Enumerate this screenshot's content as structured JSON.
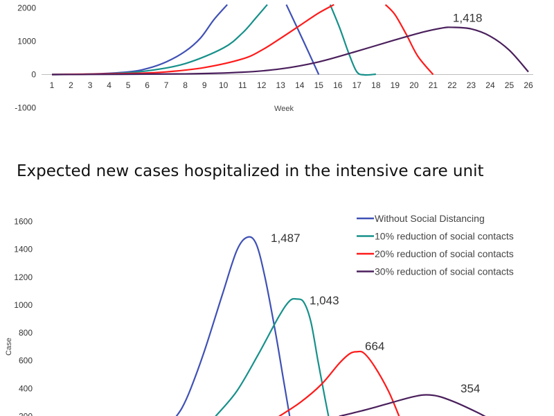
{
  "heading": "Expected new cases hospitalized in the intensive care unit",
  "chart_data": [
    {
      "type": "line",
      "title": "",
      "xlabel": "Week",
      "ylabel": "",
      "x": [
        1,
        2,
        3,
        4,
        5,
        6,
        7,
        8,
        9,
        10,
        11,
        12,
        13,
        14,
        15,
        16,
        17,
        18,
        19,
        20,
        21,
        22,
        23,
        24,
        25,
        26
      ],
      "x_ticks": [
        "1",
        "2",
        "3",
        "4",
        "5",
        "6",
        "7",
        "8",
        "9",
        "10",
        "11",
        "12",
        "13",
        "14",
        "15",
        "16",
        "17",
        "18",
        "19",
        "20",
        "21",
        "22",
        "23",
        "24",
        "25",
        "26"
      ],
      "y_ticks": [
        "2000",
        "1000",
        "0",
        "-1000"
      ],
      "y_tick_values": [
        2000,
        1000,
        0,
        -1000
      ],
      "ylim": [
        -1000,
        2000
      ],
      "grid": false,
      "series": [
        {
          "color": "#3f51b5",
          "points": [
            [
              1,
              0
            ],
            [
              3,
              15
            ],
            [
              5,
              80
            ],
            [
              6,
              180
            ],
            [
              7,
              380
            ],
            [
              8,
              700
            ],
            [
              8.8,
              1100
            ],
            [
              9.5,
              1650
            ],
            [
              10.2,
              2100
            ]
          ],
          "points_tail": [
            [
              13.3,
              2100
            ],
            [
              14.2,
              1000
            ],
            [
              15,
              0
            ]
          ]
        },
        {
          "color": "#16908a",
          "points": [
            [
              1,
              0
            ],
            [
              4,
              25
            ],
            [
              6,
              110
            ],
            [
              8,
              330
            ],
            [
              10,
              800
            ],
            [
              11,
              1250
            ],
            [
              11.7,
              1700
            ],
            [
              12.3,
              2100
            ]
          ],
          "points_tail": [
            [
              15.6,
              2100
            ],
            [
              16.1,
              1400
            ],
            [
              16.6,
              600
            ],
            [
              17,
              80
            ],
            [
              17.4,
              -10
            ],
            [
              18,
              10
            ]
          ]
        },
        {
          "color": "#ff1a1a",
          "points": [
            [
              1,
              0
            ],
            [
              5,
              30
            ],
            [
              7,
              80
            ],
            [
              9,
              210
            ],
            [
              11,
              470
            ],
            [
              12,
              730
            ],
            [
              13,
              1090
            ],
            [
              14,
              1470
            ],
            [
              15,
              1850
            ],
            [
              15.8,
              2100
            ]
          ],
          "points_tail": [
            [
              18.5,
              2100
            ],
            [
              19,
              1800
            ],
            [
              19.6,
              1200
            ],
            [
              20.2,
              550
            ],
            [
              21,
              0
            ]
          ]
        },
        {
          "color": "#4a1f5c",
          "points": [
            [
              1,
              0
            ],
            [
              8,
              20
            ],
            [
              11,
              70
            ],
            [
              13,
              170
            ],
            [
              15,
              380
            ],
            [
              17,
              700
            ],
            [
              19,
              1040
            ],
            [
              20.5,
              1280
            ],
            [
              21.5,
              1400
            ],
            [
              22,
              1418
            ],
            [
              23,
              1370
            ],
            [
              24,
              1150
            ],
            [
              25,
              730
            ],
            [
              26,
              80
            ]
          ],
          "peak_label": "1,418",
          "peak_at": [
            22,
            1418
          ]
        }
      ]
    },
    {
      "type": "line",
      "title": "",
      "xlabel": "",
      "ylabel": "Case",
      "y_ticks": [
        "1600",
        "1400",
        "1200",
        "1000",
        "800",
        "600",
        "400",
        "200"
      ],
      "y_tick_values": [
        1600,
        1400,
        1200,
        1000,
        800,
        600,
        400,
        200
      ],
      "ylim": [
        200,
        1600
      ],
      "grid": false,
      "legend_position": "top-right",
      "series": [
        {
          "name": "Without Social Distancing",
          "color": "#3f51b5",
          "peak_label": "1,487",
          "peak": 1487,
          "points": [
            [
              0.0,
              170
            ],
            [
              0.025,
              260
            ],
            [
              0.05,
              400
            ],
            [
              0.09,
              680
            ],
            [
              0.14,
              1080
            ],
            [
              0.18,
              1390
            ],
            [
              0.21,
              1487
            ],
            [
              0.235,
              1440
            ],
            [
              0.26,
              1200
            ],
            [
              0.29,
              800
            ],
            [
              0.31,
              500
            ],
            [
              0.33,
              200
            ]
          ]
        },
        {
          "name": "10% reduction of social contacts",
          "color": "#16908a",
          "peak_label": "1,043",
          "peak": 1043,
          "points": [
            [
              0.12,
              200
            ],
            [
              0.18,
              380
            ],
            [
              0.24,
              640
            ],
            [
              0.3,
              920
            ],
            [
              0.33,
              1030
            ],
            [
              0.35,
              1043
            ],
            [
              0.37,
              1020
            ],
            [
              0.39,
              880
            ],
            [
              0.41,
              600
            ],
            [
              0.43,
              330
            ],
            [
              0.44,
              200
            ]
          ]
        },
        {
          "name": "20% reduction of social contacts",
          "color": "#ff1a1a",
          "peak_label": "664",
          "peak": 664,
          "points": [
            [
              0.3,
              200
            ],
            [
              0.36,
              300
            ],
            [
              0.42,
              430
            ],
            [
              0.47,
              580
            ],
            [
              0.5,
              650
            ],
            [
              0.52,
              664
            ],
            [
              0.54,
              655
            ],
            [
              0.57,
              560
            ],
            [
              0.61,
              380
            ],
            [
              0.64,
              200
            ]
          ]
        },
        {
          "name": "30% reduction of social contacts",
          "color": "#4a1f5c",
          "peak_label": "354",
          "peak": 354,
          "points": [
            [
              0.47,
              200
            ],
            [
              0.55,
              250
            ],
            [
              0.62,
              300
            ],
            [
              0.67,
              335
            ],
            [
              0.71,
              354
            ],
            [
              0.75,
              345
            ],
            [
              0.8,
              300
            ],
            [
              0.86,
              230
            ],
            [
              0.89,
              190
            ]
          ]
        }
      ]
    }
  ]
}
